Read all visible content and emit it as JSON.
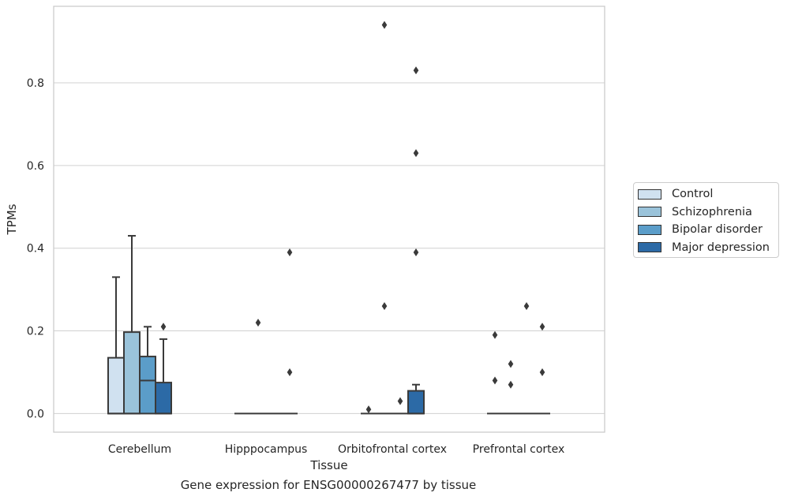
{
  "chart_data": {
    "type": "box",
    "caption": "Gene expression for ENSG00000267477 by tissue",
    "xlabel": "Tissue",
    "ylabel": "TPMs",
    "ylim": [
      -0.045,
      0.985
    ],
    "yticks": [
      "0.0",
      "0.2",
      "0.4",
      "0.6",
      "0.8"
    ],
    "ytick_values": [
      0,
      0.2,
      0.4,
      0.6,
      0.8
    ],
    "grid": "horizontal",
    "legend_position": "right",
    "categories": [
      "Cerebellum",
      "Hipppocampus",
      "Orbitofrontal cortex",
      "Prefrontal cortex"
    ],
    "series": [
      {
        "name": "Control",
        "color": "#d0e1f0",
        "boxes": [
          {
            "q1": 0,
            "median": 0,
            "q3": 0.135,
            "whisker_low": 0,
            "whisker_high": 0.33,
            "outliers": []
          },
          {
            "q1": 0,
            "median": 0,
            "q3": 0,
            "whisker_low": 0,
            "whisker_high": 0,
            "outliers": []
          },
          {
            "q1": 0,
            "median": 0,
            "q3": 0,
            "whisker_low": 0,
            "whisker_high": 0,
            "outliers": [
              0.01
            ]
          },
          {
            "q1": 0,
            "median": 0,
            "q3": 0,
            "whisker_low": 0,
            "whisker_high": 0,
            "outliers": [
              0.08,
              0.19
            ]
          }
        ]
      },
      {
        "name": "Schizophrenia",
        "color": "#9ac3da",
        "boxes": [
          {
            "q1": 0,
            "median": 0,
            "q3": 0.197,
            "whisker_low": 0,
            "whisker_high": 0.43,
            "outliers": []
          },
          {
            "q1": 0,
            "median": 0,
            "q3": 0,
            "whisker_low": 0,
            "whisker_high": 0,
            "outliers": [
              0.22
            ]
          },
          {
            "q1": 0,
            "median": 0,
            "q3": 0,
            "whisker_low": 0,
            "whisker_high": 0,
            "outliers": [
              0.26,
              0.94
            ]
          },
          {
            "q1": 0,
            "median": 0,
            "q3": 0,
            "whisker_low": 0,
            "whisker_high": 0,
            "outliers": [
              0.07,
              0.12
            ]
          }
        ]
      },
      {
        "name": "Bipolar disorder",
        "color": "#5b9dc9",
        "boxes": [
          {
            "q1": 0,
            "median": 0.08,
            "q3": 0.138,
            "whisker_low": 0,
            "whisker_high": 0.21,
            "outliers": []
          },
          {
            "q1": 0,
            "median": 0,
            "q3": 0,
            "whisker_low": 0,
            "whisker_high": 0,
            "outliers": []
          },
          {
            "q1": 0,
            "median": 0,
            "q3": 0,
            "whisker_low": 0,
            "whisker_high": 0,
            "outliers": [
              0.03
            ]
          },
          {
            "q1": 0,
            "median": 0,
            "q3": 0,
            "whisker_low": 0,
            "whisker_high": 0,
            "outliers": [
              0.26
            ]
          }
        ]
      },
      {
        "name": "Major depression",
        "color": "#2c6aa6",
        "boxes": [
          {
            "q1": 0,
            "median": 0,
            "q3": 0.075,
            "whisker_low": 0,
            "whisker_high": 0.18,
            "outliers": [
              0.21
            ]
          },
          {
            "q1": 0,
            "median": 0,
            "q3": 0,
            "whisker_low": 0,
            "whisker_high": 0,
            "outliers": [
              0.1,
              0.39
            ]
          },
          {
            "q1": 0,
            "median": 0,
            "q3": 0.055,
            "whisker_low": 0,
            "whisker_high": 0.07,
            "outliers": [
              0.39,
              0.63,
              0.83
            ]
          },
          {
            "q1": 0,
            "median": 0,
            "q3": 0,
            "whisker_low": 0,
            "whisker_high": 0,
            "outliers": [
              0.1,
              0.21
            ]
          }
        ]
      }
    ]
  }
}
